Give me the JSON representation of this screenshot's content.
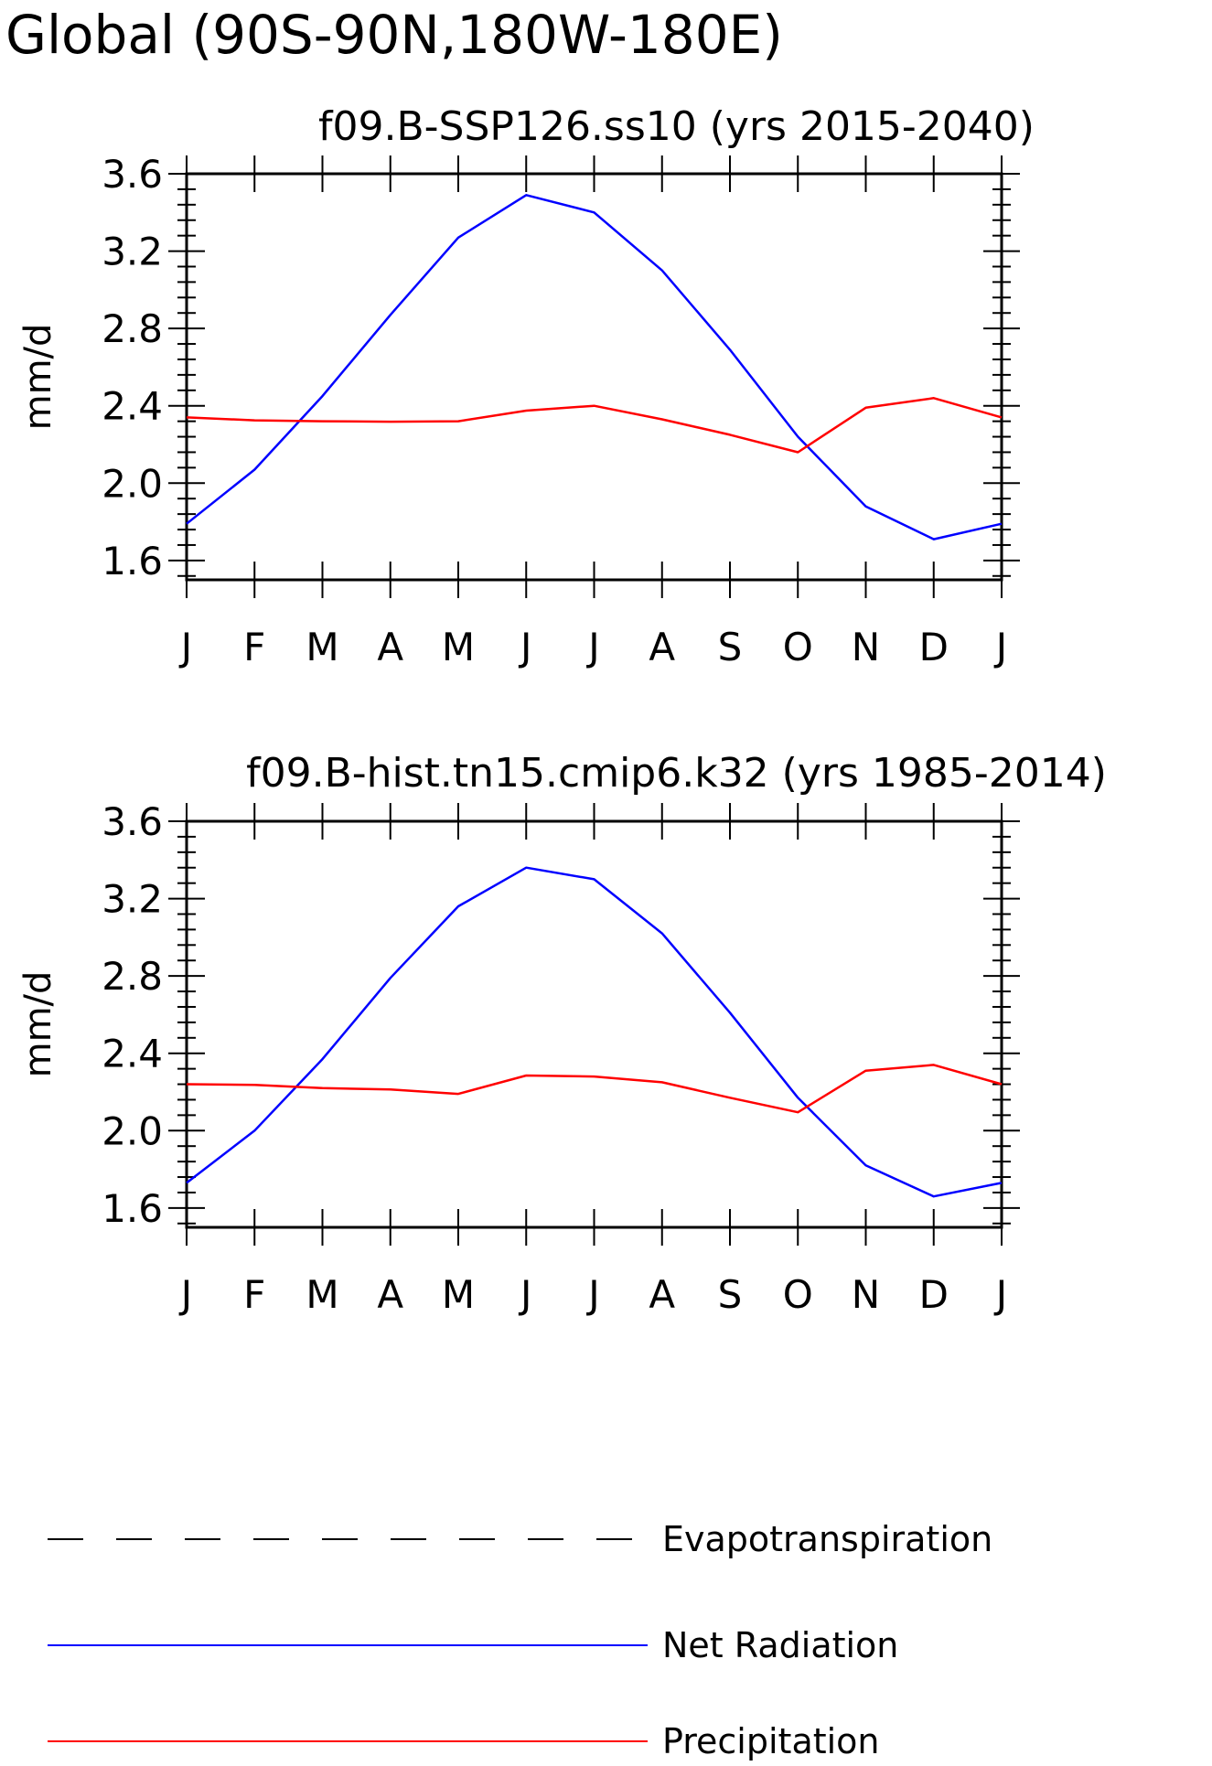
{
  "main_title": "Global (90S-90N,180W-180E)",
  "colors": {
    "evapotranspiration": "#000000",
    "net_radiation": "#0000ff",
    "precipitation": "#ff0000",
    "axes": "#000000",
    "background": "#ffffff"
  },
  "legend": {
    "items": [
      {
        "label": "Evapotranspiration",
        "style": "dashed",
        "color": "#000000"
      },
      {
        "label": "Net Radiation",
        "style": "solid",
        "color": "#0000ff"
      },
      {
        "label": "Precipitation",
        "style": "solid",
        "color": "#ff0000"
      }
    ]
  },
  "chart_data": [
    {
      "type": "line",
      "title": "f09.B-SSP126.ss10 (yrs 2015-2040)",
      "ylabel": "mm/d",
      "xlabel": "",
      "categories": [
        "J",
        "F",
        "M",
        "A",
        "M",
        "J",
        "J",
        "A",
        "S",
        "O",
        "N",
        "D",
        "J"
      ],
      "ylim": [
        1.5,
        3.6
      ],
      "yticks": [
        "3.6",
        "3.2",
        "2.8",
        "2.4",
        "2.0",
        "1.6"
      ],
      "ytick_values": [
        3.6,
        3.2,
        2.8,
        2.4,
        2.0,
        1.6
      ],
      "grid": false,
      "series": [
        {
          "name": "Net Radiation",
          "color": "#0000ff",
          "values": [
            1.79,
            2.07,
            2.45,
            2.87,
            3.27,
            3.49,
            3.4,
            3.1,
            2.69,
            2.24,
            1.88,
            1.71,
            1.79
          ]
        },
        {
          "name": "Precipitation",
          "color": "#ff0000",
          "values": [
            2.34,
            2.325,
            2.32,
            2.318,
            2.32,
            2.375,
            2.4,
            2.33,
            2.25,
            2.16,
            2.39,
            2.44,
            2.34
          ]
        }
      ]
    },
    {
      "type": "line",
      "title": "f09.B-hist.tn15.cmip6.k32 (yrs 1985-2014)",
      "ylabel": "mm/d",
      "xlabel": "",
      "categories": [
        "J",
        "F",
        "M",
        "A",
        "M",
        "J",
        "J",
        "A",
        "S",
        "O",
        "N",
        "D",
        "J"
      ],
      "ylim": [
        1.5,
        3.6
      ],
      "yticks": [
        "3.6",
        "3.2",
        "2.8",
        "2.4",
        "2.0",
        "1.6"
      ],
      "ytick_values": [
        3.6,
        3.2,
        2.8,
        2.4,
        2.0,
        1.6
      ],
      "grid": false,
      "series": [
        {
          "name": "Net Radiation",
          "color": "#0000ff",
          "values": [
            1.73,
            2.0,
            2.37,
            2.79,
            3.16,
            3.36,
            3.3,
            3.02,
            2.61,
            2.17,
            1.82,
            1.66,
            1.73
          ]
        },
        {
          "name": "Precipitation",
          "color": "#ff0000",
          "values": [
            2.24,
            2.237,
            2.22,
            2.213,
            2.19,
            2.285,
            2.28,
            2.25,
            2.17,
            2.095,
            2.31,
            2.34,
            2.24
          ]
        }
      ]
    }
  ]
}
